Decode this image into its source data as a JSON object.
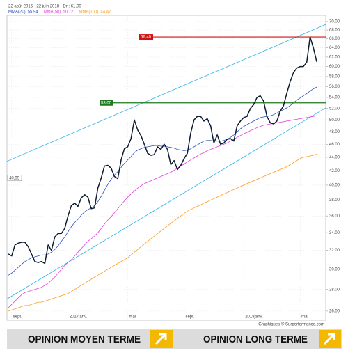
{
  "chart_data": {
    "type": "line",
    "title": "22 août 2016 - 22 juin 2018 - Dr : 61,00",
    "source": "Graphiques © Surperformance.com",
    "log_scale": true,
    "grid": true,
    "categories": [
      null,
      "sept.",
      null,
      null,
      null,
      null,
      null,
      null,
      null,
      null,
      null,
      null,
      null,
      null,
      null,
      null,
      null,
      null,
      "2017janv.",
      null,
      null,
      null,
      null,
      null,
      null,
      null,
      null,
      null,
      null,
      null,
      null,
      null,
      null,
      null,
      null,
      null,
      "mai",
      null,
      null,
      null,
      null,
      null,
      null,
      null,
      null,
      null,
      null,
      null,
      null,
      null,
      null,
      null,
      null,
      "sept.",
      null,
      null,
      null,
      null,
      null,
      null,
      null,
      null,
      null,
      null,
      null,
      null,
      null,
      null,
      null,
      null,
      null,
      "2018janv.",
      null,
      null,
      null,
      null,
      null,
      null,
      null,
      null,
      null,
      null,
      null,
      null,
      null,
      null,
      null,
      null,
      "mai",
      null,
      null,
      null,
      null,
      null
    ],
    "series": [
      {
        "color": "#0d1b2e",
        "values": [
          31.6,
          31.4,
          32.6,
          32.8,
          32.9,
          32.9,
          32.4,
          31.6,
          30.8,
          30.7,
          30.8,
          30.6,
          32.6,
          32.0,
          33.5,
          33.9,
          33.9,
          34.5,
          36.0,
          37.3,
          37.6,
          37.2,
          38.3,
          38.7,
          38.4,
          36.9,
          37.0,
          39.6,
          41.0,
          42.7,
          42.8,
          42.4,
          41.2,
          40.9,
          43.6,
          45.3,
          45.6,
          46.9,
          50.0,
          48.3,
          47.4,
          46.0,
          44.6,
          44.3,
          44.4,
          45.6,
          45.2,
          46.0,
          45.2,
          42.9,
          43.5,
          42.2,
          42.8,
          43.8,
          44.6,
          47.8,
          50.0,
          50.6,
          50.6,
          49.8,
          50.2,
          49.0,
          46.2,
          47.5,
          46.0,
          46.2,
          46.8,
          46.9,
          46.5,
          49.0,
          49.8,
          50.4,
          50.6,
          52.0,
          52.7,
          54.0,
          54.3,
          53.3,
          50.6,
          49.5,
          49.3,
          49.8,
          51.5,
          52.5,
          54.8,
          57.0,
          58.8,
          59.7,
          60.0,
          60.0,
          60.9,
          66.4,
          64.0,
          61.0
        ]
      },
      {
        "name": "MMA(20)",
        "legend_value": "55,94",
        "color": "#2a4fc0",
        "values": [
          29.4,
          29.6,
          29.9,
          30.2,
          30.5,
          30.8,
          31.0,
          31.2,
          31.3,
          31.4,
          31.5,
          31.5,
          31.6,
          31.8,
          32.1,
          32.5,
          33.0,
          33.5,
          34.1,
          34.7,
          35.2,
          35.6,
          36.1,
          36.5,
          36.8,
          37.0,
          37.3,
          37.8,
          38.5,
          39.3,
          40.1,
          40.8,
          41.4,
          41.9,
          42.5,
          43.1,
          43.6,
          44.1,
          44.7,
          45.1,
          45.3,
          45.5,
          45.6,
          45.7,
          45.8,
          45.8,
          45.7,
          45.7,
          45.6,
          45.5,
          45.4,
          45.2,
          45.1,
          45.0,
          45.1,
          45.3,
          45.6,
          45.9,
          46.2,
          46.5,
          46.6,
          46.6,
          46.5,
          46.5,
          46.5,
          46.6,
          46.8,
          47.1,
          47.5,
          48.0,
          48.5,
          48.9,
          49.2,
          49.5,
          49.8,
          50.1,
          50.4,
          50.5,
          50.6,
          50.7,
          50.9,
          51.2,
          51.5,
          51.8,
          52.1,
          52.5,
          53.0,
          53.5,
          53.9,
          54.3,
          54.7,
          55.2,
          55.6,
          55.94
        ]
      },
      {
        "name": "MMA(50)",
        "legend_value": "50,72",
        "color": "#e23ee0",
        "values": [
          26.3,
          26.6,
          26.9,
          27.2,
          27.5,
          27.7,
          27.8,
          27.9,
          28.0,
          28.1,
          28.2,
          28.4,
          28.6,
          28.9,
          29.2,
          29.6,
          30.0,
          30.4,
          30.7,
          31.0,
          31.4,
          31.8,
          32.2,
          32.6,
          33.0,
          33.3,
          33.6,
          34.0,
          34.5,
          35.0,
          35.5,
          35.9,
          36.4,
          36.9,
          37.4,
          37.9,
          38.4,
          38.8,
          39.2,
          39.6,
          39.9,
          40.2,
          40.4,
          40.6,
          40.8,
          41.0,
          41.2,
          41.4,
          41.6,
          41.8,
          42.1,
          42.4,
          42.7,
          43.0,
          43.3,
          43.6,
          43.9,
          44.2,
          44.5,
          44.7,
          45.0,
          45.2,
          45.4,
          45.6,
          45.8,
          46.0,
          46.2,
          46.5,
          46.8,
          47.1,
          47.4,
          47.7,
          47.9,
          48.2,
          48.4,
          48.7,
          48.9,
          49.1,
          49.2,
          49.3,
          49.4,
          49.5,
          49.6,
          49.7,
          49.8,
          49.9,
          50.0,
          50.1,
          50.2,
          50.3,
          50.4,
          50.5,
          50.6,
          50.72
        ]
      },
      {
        "name": "MMA(100)",
        "legend_value": "44,47",
        "color": "#ff9a1a",
        "values": [
          26.0,
          26.1,
          26.2,
          26.3,
          26.4,
          26.5,
          26.5,
          26.6,
          26.7,
          26.8,
          26.8,
          26.9,
          27.0,
          27.1,
          27.2,
          27.3,
          27.4,
          27.5,
          27.6,
          27.8,
          28.0,
          28.2,
          28.4,
          28.6,
          28.8,
          29.0,
          29.2,
          29.4,
          29.6,
          29.8,
          30.0,
          30.2,
          30.4,
          30.6,
          30.8,
          31.0,
          31.2,
          31.5,
          31.8,
          32.1,
          32.4,
          32.7,
          33.0,
          33.3,
          33.6,
          33.9,
          34.2,
          34.5,
          34.8,
          35.1,
          35.4,
          35.7,
          36.0,
          36.3,
          36.6,
          36.8,
          37.0,
          37.2,
          37.4,
          37.6,
          37.8,
          38.0,
          38.2,
          38.4,
          38.6,
          38.8,
          39.0,
          39.2,
          39.4,
          39.6,
          39.8,
          40.0,
          40.2,
          40.4,
          40.6,
          40.8,
          41.0,
          41.2,
          41.4,
          41.6,
          41.8,
          42.0,
          42.2,
          42.4,
          42.6,
          42.9,
          43.2,
          43.5,
          43.8,
          44.0,
          44.1,
          44.2,
          44.3,
          44.47
        ]
      }
    ],
    "hlines": [
      {
        "value": 66.4,
        "label": "66,40",
        "color": "#d11010"
      },
      {
        "value": 53,
        "label": "53,00",
        "color": "#1f7a1f"
      },
      {
        "value": 40.99,
        "label": "40,99",
        "color": "#555555",
        "style": "dotted"
      }
    ],
    "trendlines": [
      {
        "values": [
          43.4,
          69.3
        ],
        "color": "#2bb3e6"
      },
      {
        "values": [
          27.1,
          52.1
        ],
        "color": "#2bb3e6"
      }
    ],
    "ylim": [
      25.2,
      71.5
    ],
    "yticks": [
      {
        "value": 70,
        "label": "70.00"
      },
      {
        "value": 68,
        "label": "68.00"
      },
      {
        "value": 66,
        "label": "66.00"
      },
      {
        "value": 64,
        "label": "64.00"
      },
      {
        "value": 62,
        "label": "62.00"
      },
      {
        "value": 60,
        "label": "60.00"
      },
      {
        "value": 58,
        "label": "58.00"
      },
      {
        "value": 56,
        "label": "56.00"
      },
      {
        "value": 54,
        "label": "54.00"
      },
      {
        "value": 52,
        "label": "52.00"
      },
      {
        "value": 50,
        "label": "50.00"
      },
      {
        "value": 48,
        "label": "48.00"
      },
      {
        "value": 46,
        "label": "46.00"
      },
      {
        "value": 44,
        "label": "44.00"
      },
      {
        "value": 42,
        "label": "42.00"
      },
      {
        "value": 40,
        "label": "40.00"
      },
      {
        "value": 38,
        "label": "38.00"
      },
      {
        "value": 36,
        "label": "36.00"
      },
      {
        "value": 34,
        "label": "34.00"
      },
      {
        "value": 32,
        "label": "32.00"
      },
      {
        "value": 30,
        "label": "30.00"
      },
      {
        "value": 28,
        "label": "28.00"
      },
      {
        "value": 26,
        "label": "26.00"
      }
    ]
  },
  "footer": {
    "opinions": [
      "OPINION MOYEN TERME",
      "OPINION LONG TERME"
    ]
  }
}
